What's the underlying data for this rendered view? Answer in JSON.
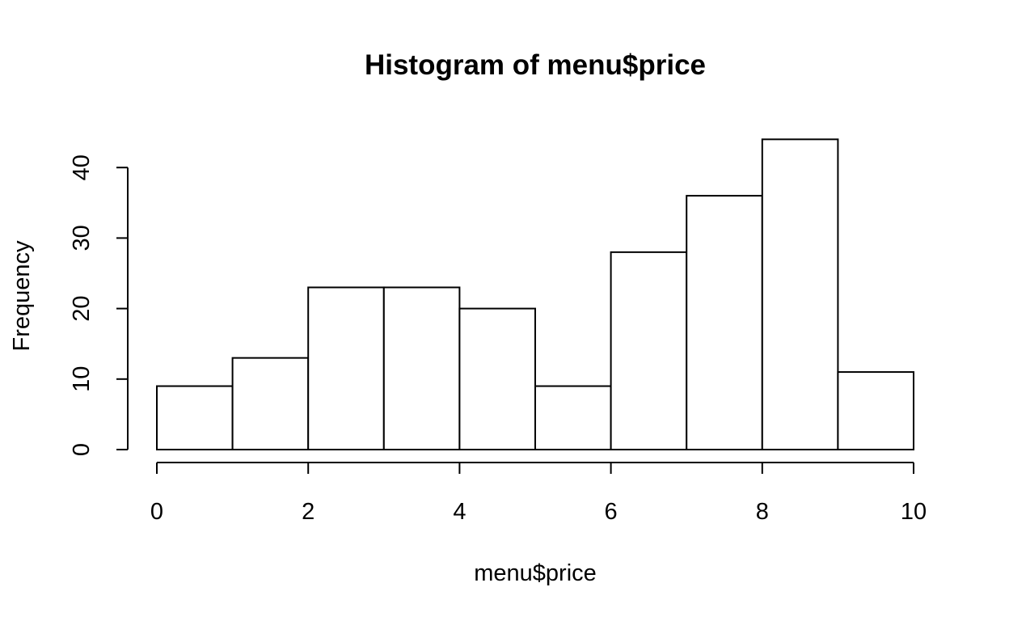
{
  "chart_data": {
    "type": "bar",
    "title": "Histogram of menu$price",
    "xlabel": "menu$price",
    "ylabel": "Frequency",
    "bins": [
      {
        "from": 0,
        "to": 1,
        "count": 9
      },
      {
        "from": 1,
        "to": 2,
        "count": 13
      },
      {
        "from": 2,
        "to": 3,
        "count": 23
      },
      {
        "from": 3,
        "to": 4,
        "count": 23
      },
      {
        "from": 4,
        "to": 5,
        "count": 20
      },
      {
        "from": 5,
        "to": 6,
        "count": 9
      },
      {
        "from": 6,
        "to": 7,
        "count": 28
      },
      {
        "from": 7,
        "to": 8,
        "count": 36
      },
      {
        "from": 8,
        "to": 9,
        "count": 44
      },
      {
        "from": 9,
        "to": 10,
        "count": 11
      }
    ],
    "xlim": [
      0,
      10
    ],
    "ylim": [
      0,
      44
    ],
    "xticks": [
      "0",
      "2",
      "4",
      "6",
      "8",
      "10"
    ],
    "yticks": [
      "0",
      "10",
      "20",
      "30",
      "40"
    ],
    "grid": false,
    "colors": {
      "bar_fill": "#ffffff",
      "bar_stroke": "#000000"
    }
  }
}
